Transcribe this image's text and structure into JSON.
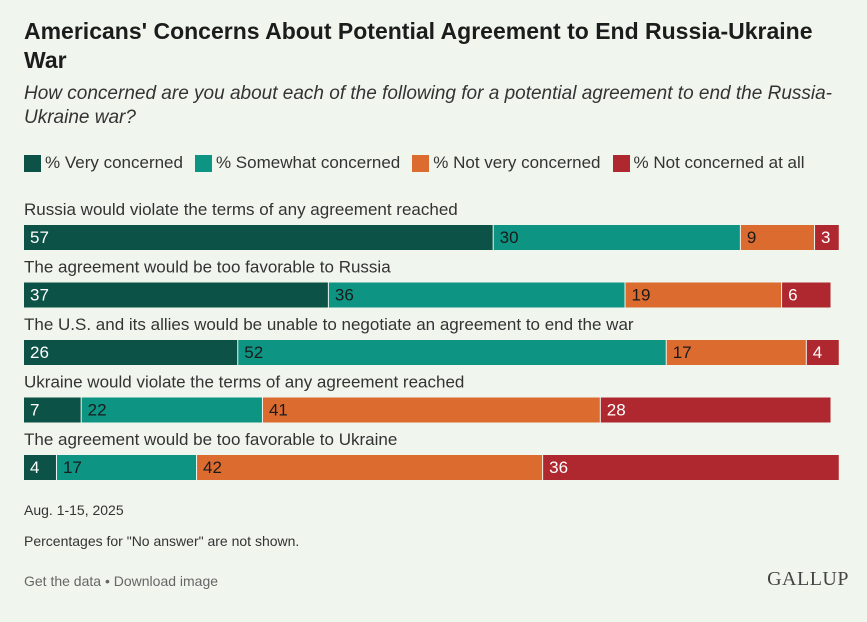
{
  "title": "Americans' Concerns About Potential Agreement to End Russia-Ukraine War",
  "subtitle": "How concerned are you about each of the following for a potential agreement to end the Russia-Ukraine war?",
  "colors": {
    "very": "#0c5247",
    "somewhat": "#0d9483",
    "not_very": "#dc6b30",
    "not_at_all": "#b0282f"
  },
  "legend": [
    "% Very concerned",
    "% Somewhat concerned",
    "% Not very concerned",
    "% Not concerned at all"
  ],
  "chart_data": {
    "type": "bar",
    "orientation": "horizontal-stacked",
    "categories": [
      "Russia would violate the terms of any agreement reached",
      "The agreement would be too favorable to Russia",
      "The U.S. and its allies would be unable to negotiate an agreement to end the war",
      "Ukraine would violate the terms of any agreement reached",
      "The agreement would be too favorable to Ukraine"
    ],
    "series": [
      {
        "name": "% Very concerned",
        "values": [
          57,
          37,
          26,
          7,
          4
        ]
      },
      {
        "name": "% Somewhat concerned",
        "values": [
          30,
          36,
          52,
          22,
          17
        ]
      },
      {
        "name": "% Not very concerned",
        "values": [
          9,
          19,
          17,
          41,
          42
        ]
      },
      {
        "name": "% Not concerned at all",
        "values": [
          3,
          6,
          4,
          28,
          36
        ]
      }
    ],
    "xlim": [
      0,
      100
    ]
  },
  "footer": {
    "date": "Aug. 1-15, 2025",
    "note": "Percentages for \"No answer\" are not shown.",
    "get_data": "Get the data",
    "separator": " • ",
    "download": "Download image",
    "logo": "GALLUP"
  }
}
